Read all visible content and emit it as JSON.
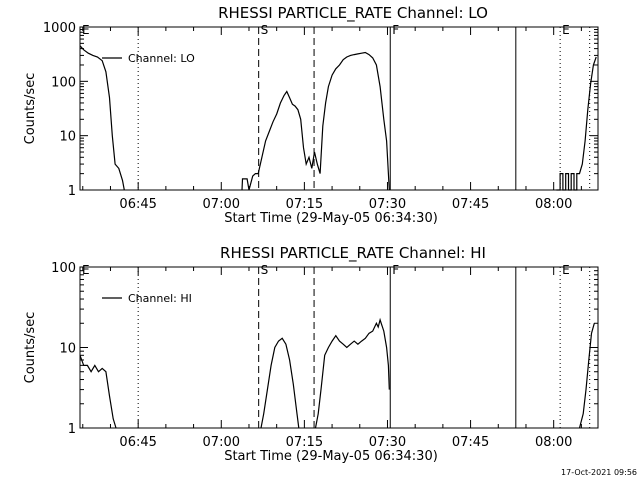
{
  "footer": {
    "timestamp": "17-Oct-2021 09:56"
  },
  "chart_data": [
    {
      "type": "line",
      "title": "RHESSI PARTICLE_RATE Channel: LO",
      "xlabel": "Start Time (29-May-05 06:34:30)",
      "ylabel": "Counts/sec",
      "y_scale": "log",
      "ylim": [
        1,
        1000
      ],
      "y_ticks": [
        "1",
        "10",
        "100",
        "1000"
      ],
      "xlim": [
        "06:34:30",
        "08:08:00"
      ],
      "x_ticks": [
        "06:45",
        "07:00",
        "07:15",
        "07:30",
        "07:45",
        "08:00"
      ],
      "legend": {
        "position": "top-left",
        "entries": [
          "Channel: LO"
        ]
      },
      "markers": [
        {
          "time": "06:34:30",
          "label": "E",
          "style": "dotted"
        },
        {
          "time": "06:45:00",
          "label": "",
          "style": "dotted"
        },
        {
          "time": "07:06:45",
          "label": "S",
          "style": "dashed"
        },
        {
          "time": "07:16:45",
          "label": "",
          "style": "dashed"
        },
        {
          "time": "07:30:30",
          "label": "F",
          "style": "solid"
        },
        {
          "time": "07:53:10",
          "label": "",
          "style": "solid"
        },
        {
          "time": "08:01:10",
          "label": "E",
          "style": "dotted"
        },
        {
          "time": "08:06:30",
          "label": "",
          "style": "dotted"
        }
      ],
      "series": [
        {
          "name": "Channel: LO",
          "points": [
            [
              "06:34:30",
              450
            ],
            [
              "06:35:10",
              380
            ],
            [
              "06:36:00",
              330
            ],
            [
              "06:36:50",
              300
            ],
            [
              "06:37:40",
              280
            ],
            [
              "06:38:30",
              240
            ],
            [
              "06:39:10",
              150
            ],
            [
              "06:39:50",
              50
            ],
            [
              "06:40:20",
              10
            ],
            [
              "06:40:50",
              3
            ],
            [
              "06:41:30",
              2.5
            ],
            [
              "06:42:10",
              1.5
            ],
            [
              "06:42:30",
              1
            ]
          ]
        },
        {
          "name": "Channel: LO",
          "points": [
            [
              "07:03:45",
              1
            ],
            [
              "07:03:50",
              1.6
            ],
            [
              "07:04:40",
              1.6
            ],
            [
              "07:05:00",
              1
            ],
            [
              "07:05:40",
              1.8
            ],
            [
              "07:06:10",
              2
            ],
            [
              "07:06:40",
              2
            ],
            [
              "07:07:20",
              4
            ],
            [
              "07:08:00",
              8
            ],
            [
              "07:08:40",
              12
            ],
            [
              "07:09:20",
              18
            ],
            [
              "07:10:00",
              25
            ],
            [
              "07:10:40",
              40
            ],
            [
              "07:11:20",
              55
            ],
            [
              "07:11:50",
              65
            ],
            [
              "07:12:20",
              50
            ],
            [
              "07:12:50",
              38
            ],
            [
              "07:13:20",
              35
            ],
            [
              "07:13:50",
              30
            ],
            [
              "07:14:20",
              20
            ],
            [
              "07:14:50",
              6
            ],
            [
              "07:15:20",
              3
            ],
            [
              "07:15:50",
              4
            ],
            [
              "07:16:20",
              2.5
            ],
            [
              "07:16:50",
              5
            ],
            [
              "07:17:20",
              3
            ],
            [
              "07:17:50",
              2
            ],
            [
              "07:18:20",
              15
            ],
            [
              "07:18:50",
              40
            ],
            [
              "07:19:20",
              80
            ],
            [
              "07:20:00",
              130
            ],
            [
              "07:20:40",
              170
            ],
            [
              "07:21:20",
              200
            ],
            [
              "07:22:00",
              250
            ],
            [
              "07:22:40",
              280
            ],
            [
              "07:23:20",
              300
            ],
            [
              "07:24:00",
              310
            ],
            [
              "07:24:40",
              320
            ],
            [
              "07:25:20",
              330
            ],
            [
              "07:26:00",
              340
            ],
            [
              "07:26:40",
              310
            ],
            [
              "07:27:20",
              270
            ],
            [
              "07:28:00",
              200
            ],
            [
              "07:28:40",
              80
            ],
            [
              "07:29:20",
              20
            ],
            [
              "07:29:50",
              8
            ],
            [
              "07:30:20",
              1
            ]
          ]
        },
        {
          "name": "Channel: LO",
          "points": [
            [
              "08:00:30",
              1
            ],
            [
              "08:01:10",
              1
            ],
            [
              "08:01:10",
              2
            ],
            [
              "08:01:40",
              2
            ],
            [
              "08:01:40",
              1
            ],
            [
              "08:02:10",
              1
            ],
            [
              "08:02:10",
              2
            ],
            [
              "08:02:40",
              2
            ],
            [
              "08:02:40",
              1
            ],
            [
              "08:03:10",
              1
            ],
            [
              "08:03:10",
              2
            ],
            [
              "08:03:40",
              2
            ],
            [
              "08:03:40",
              1
            ],
            [
              "08:04:10",
              1
            ],
            [
              "08:04:10",
              2
            ],
            [
              "08:04:40",
              2
            ],
            [
              "08:05:10",
              3
            ],
            [
              "08:05:40",
              8
            ],
            [
              "08:06:10",
              30
            ],
            [
              "08:06:40",
              90
            ],
            [
              "08:07:10",
              200
            ],
            [
              "08:07:40",
              280
            ]
          ]
        }
      ]
    },
    {
      "type": "line",
      "title": "RHESSI PARTICLE_RATE Channel: HI",
      "xlabel": "Start Time (29-May-05 06:34:30)",
      "ylabel": "Counts/sec",
      "y_scale": "log",
      "ylim": [
        1,
        100
      ],
      "y_ticks": [
        "1",
        "10",
        "100"
      ],
      "xlim": [
        "06:34:30",
        "08:08:00"
      ],
      "x_ticks": [
        "06:45",
        "07:00",
        "07:15",
        "07:30",
        "07:45",
        "08:00"
      ],
      "legend": {
        "position": "top-left",
        "entries": [
          "Channel: HI"
        ]
      },
      "markers": [
        {
          "time": "06:34:30",
          "label": "E",
          "style": "dotted"
        },
        {
          "time": "06:45:00",
          "label": "",
          "style": "dotted"
        },
        {
          "time": "07:06:45",
          "label": "S",
          "style": "dashed"
        },
        {
          "time": "07:16:45",
          "label": "",
          "style": "dashed"
        },
        {
          "time": "07:30:30",
          "label": "F",
          "style": "solid"
        },
        {
          "time": "07:53:10",
          "label": "",
          "style": "solid"
        },
        {
          "time": "08:01:10",
          "label": "E",
          "style": "dotted"
        },
        {
          "time": "08:06:30",
          "label": "",
          "style": "dotted"
        }
      ],
      "series": [
        {
          "name": "Channel: HI",
          "points": [
            [
              "06:34:30",
              8
            ],
            [
              "06:35:10",
              6
            ],
            [
              "06:35:50",
              6
            ],
            [
              "06:36:30",
              5
            ],
            [
              "06:37:10",
              6
            ],
            [
              "06:37:50",
              5
            ],
            [
              "06:38:30",
              5.5
            ],
            [
              "06:39:10",
              5
            ],
            [
              "06:39:50",
              2.5
            ],
            [
              "06:40:30",
              1.3
            ],
            [
              "06:41:00",
              1
            ]
          ]
        },
        {
          "name": "Channel: HI",
          "points": [
            [
              "07:07:10",
              1
            ],
            [
              "07:07:40",
              1.5
            ],
            [
              "07:08:20",
              3
            ],
            [
              "07:09:00",
              6
            ],
            [
              "07:09:40",
              10
            ],
            [
              "07:10:20",
              12
            ],
            [
              "07:11:00",
              13
            ],
            [
              "07:11:40",
              11
            ],
            [
              "07:12:20",
              7
            ],
            [
              "07:13:00",
              3.5
            ],
            [
              "07:13:40",
              1.5
            ],
            [
              "07:14:00",
              1
            ]
          ]
        },
        {
          "name": "Channel: HI",
          "points": [
            [
              "07:17:00",
              1
            ],
            [
              "07:17:30",
              1.5
            ],
            [
              "07:18:00",
              3
            ],
            [
              "07:18:40",
              8
            ],
            [
              "07:19:20",
              10
            ],
            [
              "07:20:00",
              12
            ],
            [
              "07:20:40",
              14
            ],
            [
              "07:21:20",
              12
            ],
            [
              "07:22:00",
              11
            ],
            [
              "07:22:40",
              10
            ],
            [
              "07:23:20",
              11
            ],
            [
              "07:24:00",
              12
            ],
            [
              "07:24:40",
              11
            ],
            [
              "07:25:20",
              12
            ],
            [
              "07:26:00",
              13
            ],
            [
              "07:26:40",
              15
            ],
            [
              "07:27:20",
              16
            ],
            [
              "07:28:00",
              20
            ],
            [
              "07:28:20",
              18
            ],
            [
              "07:28:40",
              22
            ],
            [
              "07:29:20",
              16
            ],
            [
              "07:29:50",
              10
            ],
            [
              "07:30:10",
              6
            ],
            [
              "07:30:20",
              3
            ]
          ]
        },
        {
          "name": "Channel: HI",
          "points": [
            [
              "08:04:40",
              1
            ],
            [
              "08:05:20",
              1.5
            ],
            [
              "08:05:50",
              3
            ],
            [
              "08:06:20",
              7
            ],
            [
              "08:06:50",
              15
            ],
            [
              "08:07:20",
              20
            ]
          ]
        }
      ]
    }
  ]
}
